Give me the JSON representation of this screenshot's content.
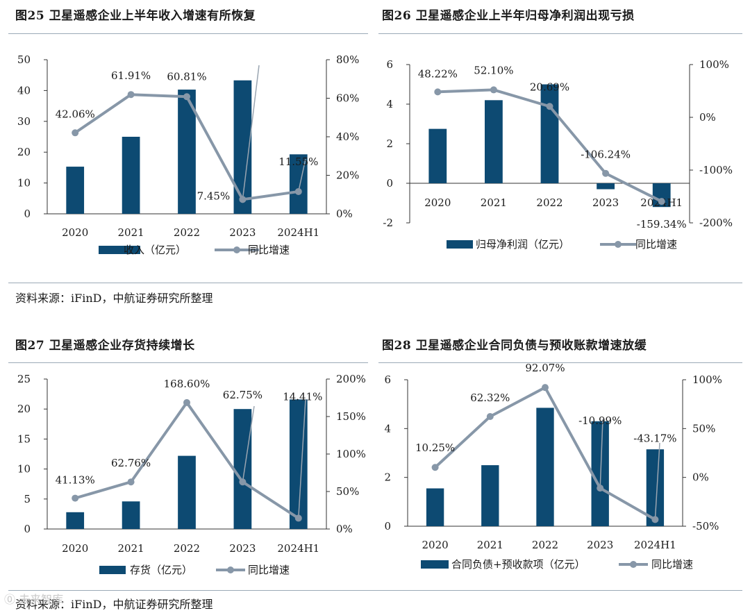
{
  "panels": [
    {
      "title": "图25 卫星遥感企业上半年收入增速有所恢复",
      "chart_data": {
        "type": "bar+line",
        "categories": [
          "2020",
          "2021",
          "2022",
          "2023",
          "2024H1"
        ],
        "series": [
          {
            "name": "收入（亿元）",
            "axis": "left",
            "kind": "bar",
            "values": [
              15.3,
              25.0,
              40.3,
              43.3,
              19.3
            ]
          },
          {
            "name": "同比增速",
            "axis": "right",
            "kind": "line",
            "values": [
              42.06,
              61.91,
              60.81,
              7.45,
              11.55
            ],
            "labels": [
              "42.06%",
              "61.91%",
              "60.81%",
              "7.45%",
              "11.55%"
            ]
          }
        ],
        "left_axis": {
          "ylim": [
            0,
            50
          ],
          "ticks": [
            0,
            10,
            20,
            30,
            40,
            50
          ],
          "tick_labels": [
            "0",
            "10",
            "20",
            "30",
            "40",
            "50"
          ]
        },
        "right_axis": {
          "ylim": [
            0,
            80
          ],
          "ticks": [
            0,
            20,
            40,
            60,
            80
          ],
          "tick_labels": [
            "0%",
            "20%",
            "40%",
            "60%",
            "80%"
          ]
        },
        "legend_position": "bottom"
      }
    },
    {
      "title": "图26 卫星遥感企业上半年归母净利润出现亏损",
      "chart_data": {
        "type": "bar+line",
        "categories": [
          "2020",
          "2021",
          "2022",
          "2023",
          "2024H1"
        ],
        "series": [
          {
            "name": "归母净利润（亿元）",
            "axis": "left",
            "kind": "bar",
            "values": [
              2.75,
              4.2,
              5.0,
              -0.3,
              -1.2
            ]
          },
          {
            "name": "同比增速",
            "axis": "right",
            "kind": "line",
            "values": [
              48.22,
              52.1,
              20.69,
              -106.24,
              -159.34
            ],
            "labels": [
              "48.22%",
              "52.10%",
              "20.69%",
              "-106.24%",
              "-159.34%"
            ]
          }
        ],
        "left_axis": {
          "ylim": [
            -2,
            6
          ],
          "ticks": [
            -2,
            0,
            2,
            4,
            6
          ],
          "tick_labels": [
            "-2",
            "0",
            "2",
            "4",
            "6"
          ]
        },
        "right_axis": {
          "ylim": [
            -200,
            100
          ],
          "ticks": [
            -200,
            -100,
            0,
            100
          ],
          "tick_labels": [
            "-200%",
            "-100%",
            "0%",
            "100%"
          ]
        },
        "legend_position": "bottom"
      }
    },
    {
      "title": "图27 卫星遥感企业存货持续增长",
      "chart_data": {
        "type": "bar+line",
        "categories": [
          "2020",
          "2021",
          "2022",
          "2023",
          "2024H1"
        ],
        "series": [
          {
            "name": "存货（亿元）",
            "axis": "left",
            "kind": "bar",
            "values": [
              2.8,
              4.6,
              12.2,
              20.0,
              21.6
            ]
          },
          {
            "name": "同比增速",
            "axis": "right",
            "kind": "line",
            "values": [
              41.13,
              62.76,
              168.6,
              62.75,
              14.41
            ],
            "labels": [
              "41.13%",
              "62.76%",
              "168.60%",
              "62.75%",
              "14.41%"
            ]
          }
        ],
        "left_axis": {
          "ylim": [
            0,
            25
          ],
          "ticks": [
            0,
            5,
            10,
            15,
            20,
            25
          ],
          "tick_labels": [
            "0",
            "5",
            "10",
            "15",
            "20",
            "25"
          ]
        },
        "right_axis": {
          "ylim": [
            0,
            200
          ],
          "ticks": [
            0,
            50,
            100,
            150,
            200
          ],
          "tick_labels": [
            "0%",
            "50%",
            "100%",
            "150%",
            "200%"
          ]
        },
        "legend_position": "bottom"
      }
    },
    {
      "title": "图28 卫星遥感企业合同负债与预收账款增速放缓",
      "chart_data": {
        "type": "bar+line",
        "categories": [
          "2020",
          "2021",
          "2022",
          "2023",
          "2024H1"
        ],
        "series": [
          {
            "name": "合同负债+预收款项（亿元）",
            "axis": "left",
            "kind": "bar",
            "values": [
              1.55,
              2.5,
              4.85,
              4.3,
              3.15
            ]
          },
          {
            "name": "同比增速",
            "axis": "right",
            "kind": "line",
            "values": [
              10.25,
              62.32,
              92.07,
              -10.99,
              -43.17
            ],
            "labels": [
              "10.25%",
              "62.32%",
              "92.07%",
              "-10.99%",
              "-43.17%"
            ]
          }
        ],
        "left_axis": {
          "ylim": [
            0,
            6
          ],
          "ticks": [
            0,
            2,
            4,
            6
          ],
          "tick_labels": [
            "0",
            "2",
            "4",
            "6"
          ]
        },
        "right_axis": {
          "ylim": [
            -50,
            100
          ],
          "ticks": [
            -50,
            0,
            50,
            100
          ],
          "tick_labels": [
            "-50%",
            "0%",
            "50%",
            "100%"
          ]
        },
        "legend_position": "bottom"
      }
    }
  ],
  "sources": [
    "资料来源：iFinD，中航证券研究所整理",
    "资料来源：iFinD，中航证券研究所整理"
  ],
  "colors": {
    "bar": "#0d4a72",
    "line": "#8797a8",
    "leader": "#9aa5b1",
    "rule": "#9aa9b6"
  },
  "watermark": "⓪ 未来智库"
}
